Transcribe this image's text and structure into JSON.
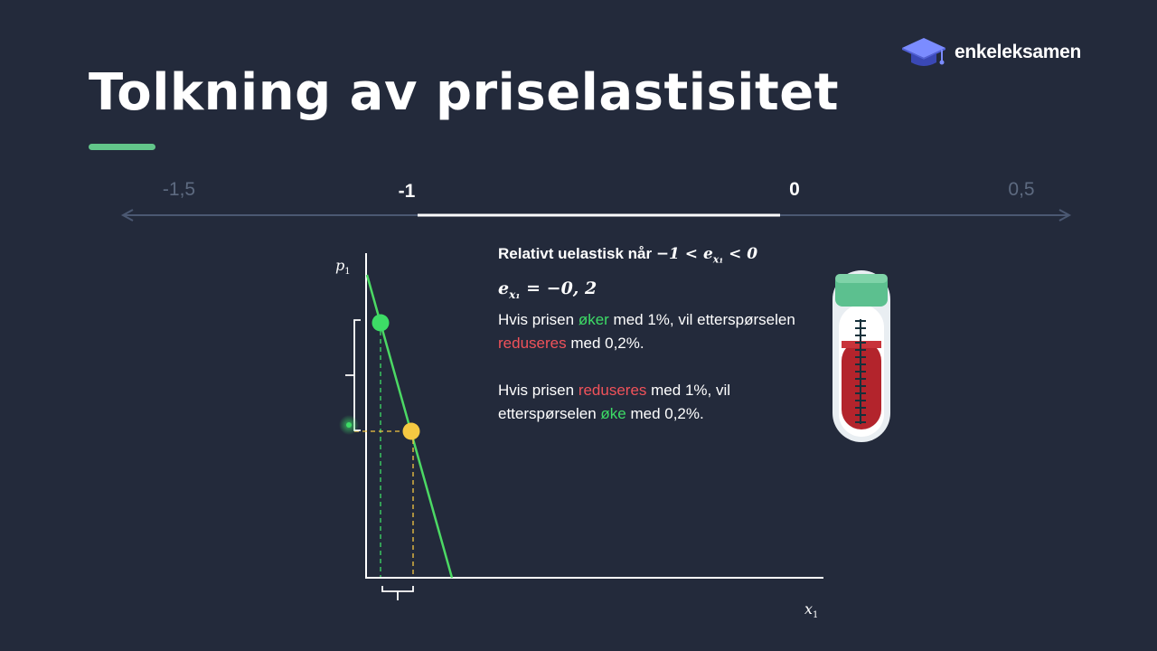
{
  "logo": {
    "text": "enkeleksamen",
    "icon": "graduation-cap-icon"
  },
  "title": "Tolkning av priselastisitet",
  "scale": {
    "ticks": [
      {
        "label": "-1,5",
        "value": -1.5,
        "highlight": false
      },
      {
        "label": "-1",
        "value": -1,
        "highlight": true
      },
      {
        "label": "0",
        "value": 0,
        "highlight": true
      },
      {
        "label": "0,5",
        "value": 0.5,
        "highlight": false
      }
    ],
    "highlight_range": [
      -1,
      0
    ]
  },
  "info": {
    "condition_prefix": "Relativt uelastisk når",
    "condition_math": "−1 < e",
    "condition_sub": "x₁",
    "condition_suffix": " < 0",
    "elasticity_symbol": "e",
    "elasticity_sub": "x₁",
    "elasticity_value": " = −0, 2",
    "p1_start": "Hvis prisen ",
    "p1_word1": "øker",
    "p1_mid": " med 1%, vil etterspørselen ",
    "p1_word2": "reduseres",
    "p1_end": " med 0,2%.",
    "p2_start": "Hvis prisen ",
    "p2_word1": "reduseres",
    "p2_mid": " med 1%, vil etterspørselen ",
    "p2_word2": "øke",
    "p2_end": " med 0,2%."
  },
  "axes": {
    "y_symbol": "p",
    "y_sub": "1",
    "x_symbol": "x",
    "x_sub": "1"
  },
  "colors": {
    "background": "#232a3b",
    "green": "#3ddc66",
    "red": "#f0525a",
    "yellow": "#f5c842",
    "demand_line": "#4cd964",
    "accent": "#62c68a"
  },
  "illustration": "test-tube-icon"
}
